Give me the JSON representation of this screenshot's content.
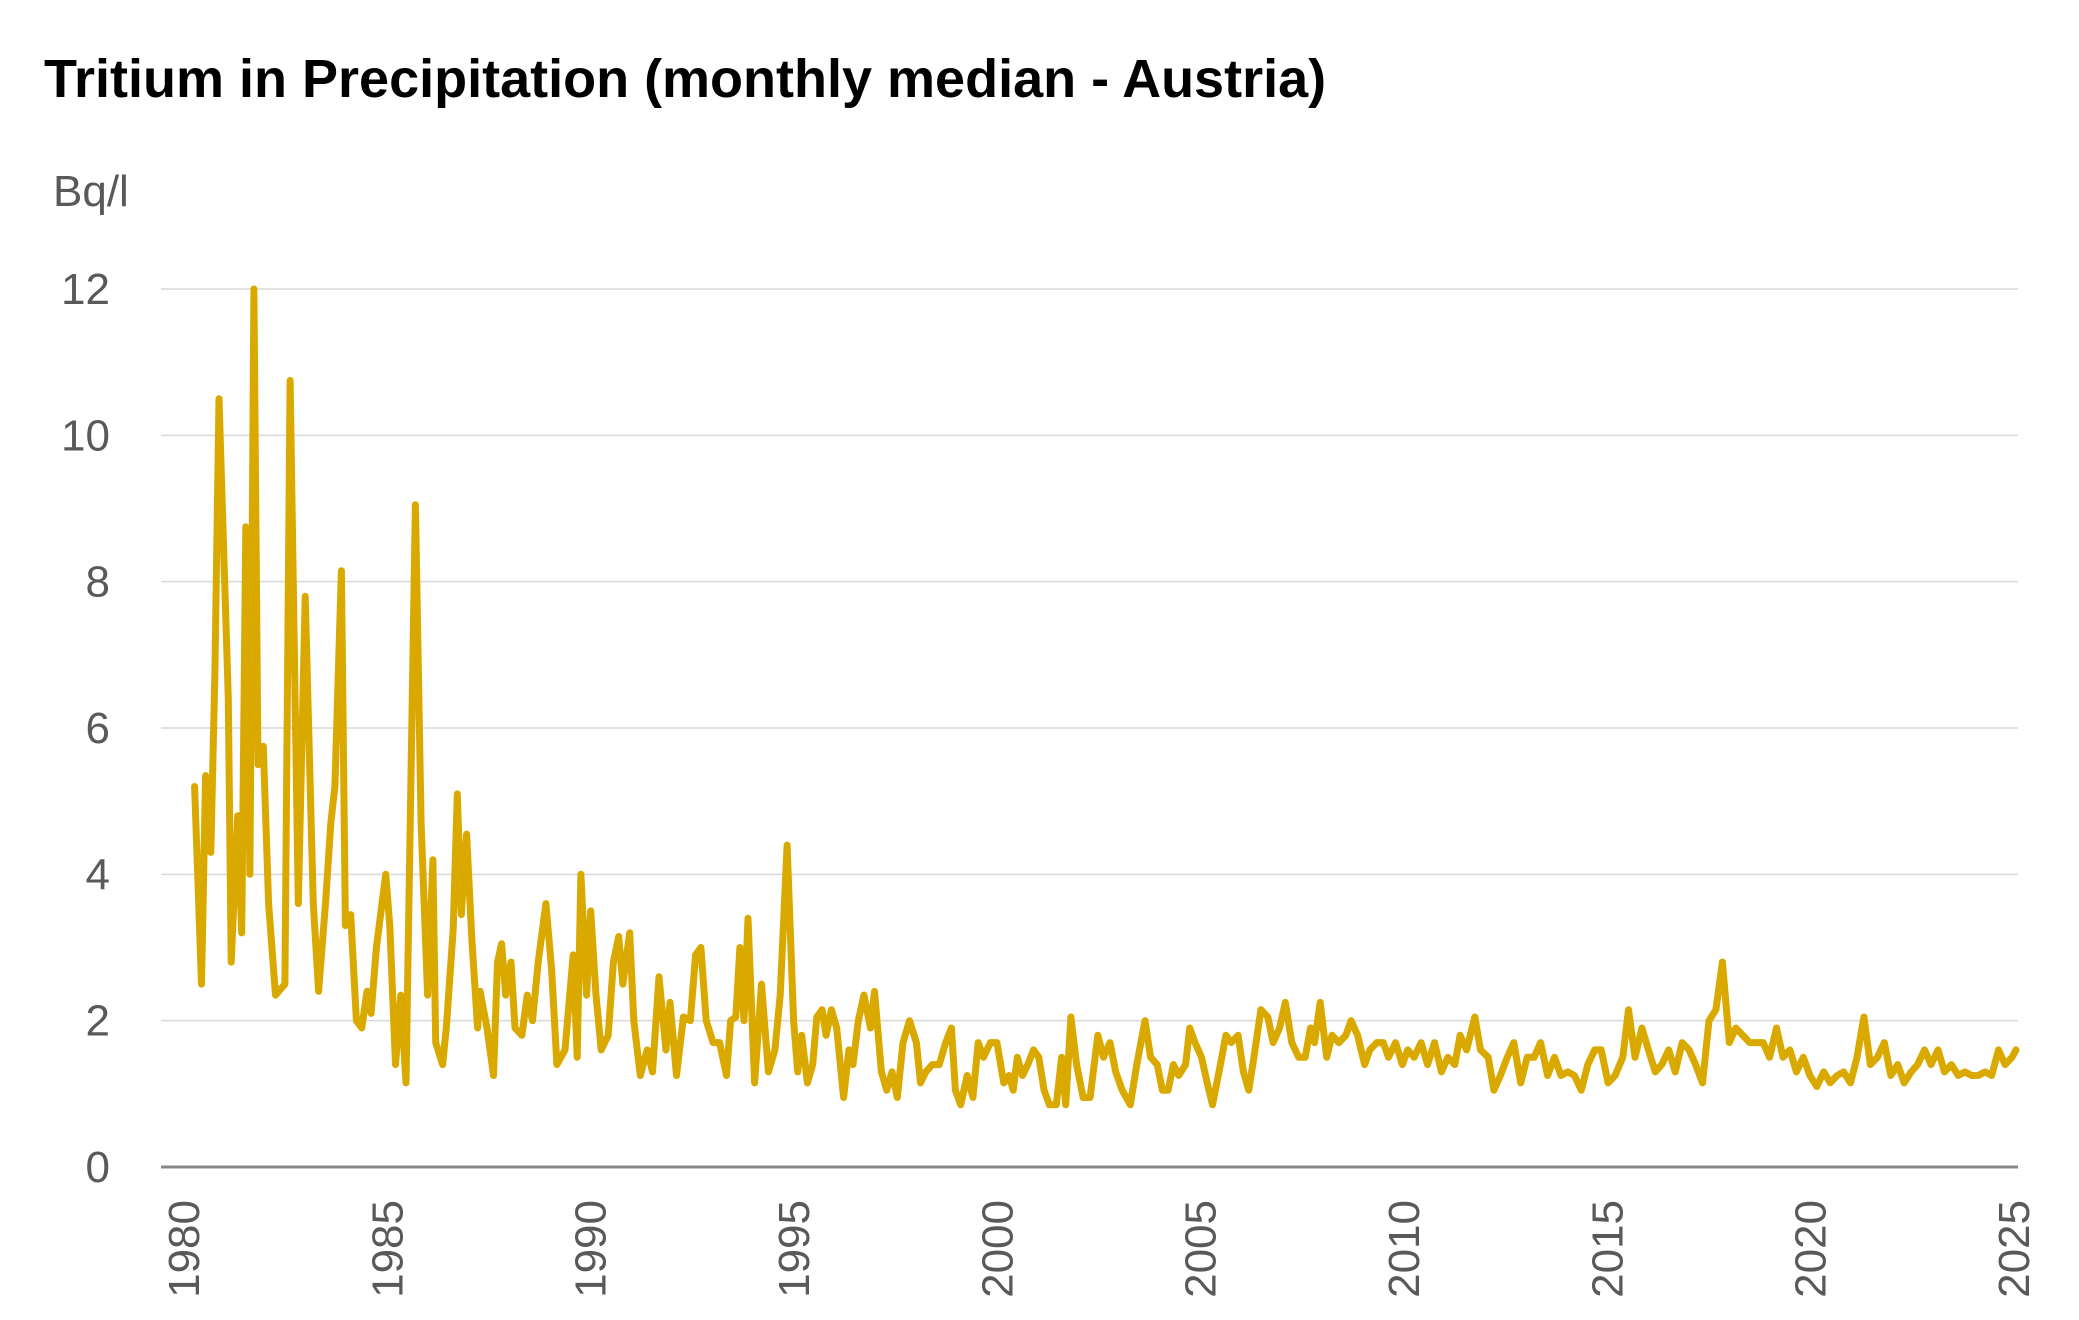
{
  "chart_data": {
    "type": "line",
    "title": "Tritium in Precipitation (monthly median - Austria)",
    "ylabel": "Bq/l",
    "xlabel": "",
    "ylim": [
      0,
      12
    ],
    "yticks": [
      "0",
      "2",
      "4",
      "6",
      "8",
      "10",
      "12"
    ],
    "xlim": [
      1980,
      2025
    ],
    "xticks": [
      "1980",
      "1985",
      "1990",
      "1995",
      "2000",
      "2005",
      "2010",
      "2015",
      "2020",
      "2025"
    ],
    "grid": "horizontal",
    "legend": "none",
    "color": "#DAA900",
    "series": [
      {
        "x": [
          1980.26,
          1980.43,
          1980.53,
          1980.66,
          1980.76,
          1980.86,
          1981.09,
          1981.16,
          1981.32,
          1981.42,
          1981.52,
          1981.62,
          1981.72,
          1981.82,
          1981.95,
          1982.08,
          1982.25,
          1982.48,
          1982.61,
          1982.81,
          1982.98,
          1983.18,
          1983.31,
          1983.48,
          1983.61,
          1983.71,
          1983.87,
          1983.97,
          1984.1,
          1984.24,
          1984.37,
          1984.5,
          1984.6,
          1984.73,
          1984.96,
          1985.06,
          1985.2,
          1985.33,
          1985.46,
          1985.69,
          1985.83,
          1985.99,
          1986.12,
          1986.19,
          1986.36,
          1986.45,
          1986.62,
          1986.72,
          1986.82,
          1986.95,
          1987.08,
          1987.22,
          1987.28,
          1987.45,
          1987.61,
          1987.71,
          1987.81,
          1987.91,
          1988.04,
          1988.14,
          1988.31,
          1988.44,
          1988.57,
          1988.71,
          1988.9,
          1989.04,
          1989.17,
          1989.37,
          1989.57,
          1989.67,
          1989.76,
          1989.9,
          1990.0,
          1990.13,
          1990.26,
          1990.43,
          1990.56,
          1990.69,
          1990.79,
          1990.96,
          1991.06,
          1991.22,
          1991.39,
          1991.52,
          1991.68,
          1991.85,
          1991.95,
          1992.11,
          1992.28,
          1992.45,
          1992.58,
          1992.71,
          1992.84,
          1993.01,
          1993.17,
          1993.34,
          1993.44,
          1993.57,
          1993.67,
          1993.77,
          1993.87,
          1994.03,
          1994.2,
          1994.37,
          1994.53,
          1994.66,
          1994.83,
          1994.99,
          1995.09,
          1995.19,
          1995.33,
          1995.46,
          1995.56,
          1995.69,
          1995.79,
          1995.92,
          1996.05,
          1996.22,
          1996.35,
          1996.45,
          1996.58,
          1996.72,
          1996.88,
          1996.98,
          1997.15,
          1997.28,
          1997.41,
          1997.54,
          1997.68,
          1997.84,
          1998.01,
          1998.11,
          1998.24,
          1998.4,
          1998.57,
          1998.73,
          1998.87,
          1998.97,
          1999.1,
          1999.26,
          1999.4,
          1999.53,
          1999.66,
          1999.83,
          1999.99,
          2000.16,
          2000.29,
          2000.39,
          2000.49,
          2000.62,
          2000.75,
          2000.89,
          2001.02,
          2001.15,
          2001.28,
          2001.45,
          2001.58,
          2001.68,
          2001.81,
          2001.95,
          2002.11,
          2002.28,
          2002.47,
          2002.61,
          2002.77,
          2002.91,
          2003.07,
          2003.27,
          2003.43,
          2003.63,
          2003.77,
          2003.93,
          2004.06,
          2004.2,
          2004.33,
          2004.46,
          2004.63,
          2004.73,
          2004.86,
          2005.02,
          2005.16,
          2005.29,
          2005.45,
          2005.62,
          2005.75,
          2005.92,
          2006.05,
          2006.18,
          2006.31,
          2006.48,
          2006.65,
          2006.78,
          2006.94,
          2007.08,
          2007.24,
          2007.41,
          2007.57,
          2007.7,
          2007.8,
          2007.94,
          2008.1,
          2008.23,
          2008.4,
          2008.57,
          2008.7,
          2008.86,
          2009.03,
          2009.16,
          2009.33,
          2009.49,
          2009.62,
          2009.79,
          2009.96,
          2010.09,
          2010.25,
          2010.42,
          2010.58,
          2010.75,
          2010.92,
          2011.08,
          2011.25,
          2011.38,
          2011.54,
          2011.74,
          2011.88,
          2012.07,
          2012.21,
          2012.37,
          2012.54,
          2012.7,
          2012.87,
          2013.03,
          2013.2,
          2013.36,
          2013.53,
          2013.7,
          2013.86,
          2014.03,
          2014.19,
          2014.36,
          2014.52,
          2014.69,
          2014.85,
          2015.02,
          2015.19,
          2015.38,
          2015.52,
          2015.68,
          2015.85,
          2016.01,
          2016.18,
          2016.34,
          2016.51,
          2016.67,
          2016.84,
          2017.01,
          2017.17,
          2017.34,
          2017.5,
          2017.67,
          2017.83,
          2018.0,
          2018.16,
          2018.33,
          2018.5,
          2018.66,
          2018.83,
          2018.99,
          2019.16,
          2019.32,
          2019.49,
          2019.65,
          2019.82,
          2019.98,
          2020.15,
          2020.32,
          2020.48,
          2020.65,
          2020.81,
          2020.98,
          2021.14,
          2021.31,
          2021.47,
          2021.64,
          2021.81,
          2021.97,
          2022.14,
          2022.3,
          2022.47,
          2022.63,
          2022.8,
          2022.96,
          2023.13,
          2023.29,
          2023.46,
          2023.63,
          2023.79,
          2023.96,
          2024.12,
          2024.29,
          2024.45,
          2024.62,
          2024.78,
          2024.95,
          2025.05
        ],
        "values": [
          5.2,
          2.5,
          5.35,
          4.3,
          6.75,
          10.5,
          6.4,
          2.8,
          4.8,
          3.2,
          8.75,
          4.0,
          12.0,
          5.5,
          5.75,
          3.6,
          2.35,
          2.5,
          10.75,
          3.6,
          7.8,
          3.6,
          2.4,
          3.6,
          4.7,
          5.2,
          8.15,
          3.3,
          3.45,
          2.0,
          1.9,
          2.4,
          2.1,
          3.0,
          4.0,
          3.3,
          1.4,
          2.35,
          1.15,
          9.05,
          4.7,
          2.35,
          4.2,
          1.7,
          1.4,
          1.9,
          3.25,
          5.1,
          3.45,
          4.55,
          3.1,
          1.9,
          2.4,
          1.9,
          1.25,
          2.8,
          3.05,
          2.35,
          2.8,
          1.9,
          1.8,
          2.35,
          2.0,
          2.8,
          3.6,
          2.7,
          1.4,
          1.6,
          2.9,
          1.5,
          4.0,
          2.35,
          3.5,
          2.35,
          1.6,
          1.8,
          2.8,
          3.15,
          2.5,
          3.2,
          2.0,
          1.25,
          1.6,
          1.3,
          2.6,
          1.6,
          2.25,
          1.25,
          2.05,
          2.0,
          2.9,
          3.0,
          2.0,
          1.7,
          1.7,
          1.25,
          2.0,
          2.05,
          3.0,
          2.0,
          3.4,
          1.15,
          2.5,
          1.3,
          1.6,
          2.35,
          4.4,
          2.0,
          1.3,
          1.8,
          1.15,
          1.4,
          2.05,
          2.15,
          1.8,
          2.15,
          1.9,
          0.95,
          1.6,
          1.4,
          2.0,
          2.35,
          1.9,
          2.4,
          1.3,
          1.05,
          1.3,
          0.95,
          1.7,
          2.0,
          1.7,
          1.15,
          1.3,
          1.4,
          1.4,
          1.7,
          1.9,
          1.05,
          0.85,
          1.25,
          0.95,
          1.7,
          1.5,
          1.7,
          1.7,
          1.15,
          1.25,
          1.05,
          1.5,
          1.25,
          1.4,
          1.6,
          1.5,
          1.05,
          0.85,
          0.85,
          1.5,
          0.85,
          2.05,
          1.4,
          0.95,
          0.95,
          1.8,
          1.5,
          1.7,
          1.3,
          1.05,
          0.85,
          1.4,
          2.0,
          1.5,
          1.4,
          1.05,
          1.05,
          1.4,
          1.25,
          1.4,
          1.9,
          1.7,
          1.5,
          1.15,
          0.85,
          1.3,
          1.8,
          1.7,
          1.8,
          1.3,
          1.05,
          1.5,
          2.15,
          2.05,
          1.7,
          1.9,
          2.25,
          1.7,
          1.5,
          1.5,
          1.9,
          1.7,
          2.25,
          1.5,
          1.8,
          1.7,
          1.8,
          2.0,
          1.8,
          1.4,
          1.6,
          1.7,
          1.7,
          1.5,
          1.7,
          1.4,
          1.6,
          1.5,
          1.7,
          1.4,
          1.7,
          1.3,
          1.5,
          1.4,
          1.8,
          1.6,
          2.05,
          1.6,
          1.5,
          1.05,
          1.25,
          1.5,
          1.7,
          1.15,
          1.5,
          1.5,
          1.7,
          1.25,
          1.5,
          1.25,
          1.3,
          1.25,
          1.05,
          1.4,
          1.6,
          1.6,
          1.15,
          1.25,
          1.5,
          2.15,
          1.5,
          1.9,
          1.6,
          1.3,
          1.4,
          1.6,
          1.3,
          1.7,
          1.6,
          1.4,
          1.15,
          2.0,
          2.15,
          2.8,
          1.7,
          1.9,
          1.8,
          1.7,
          1.7,
          1.7,
          1.5,
          1.9,
          1.5,
          1.6,
          1.3,
          1.5,
          1.25,
          1.1,
          1.3,
          1.15,
          1.25,
          1.3,
          1.15,
          1.5,
          2.05,
          1.4,
          1.5,
          1.7,
          1.25,
          1.4,
          1.15,
          1.3,
          1.4,
          1.6,
          1.4,
          1.6,
          1.3,
          1.4,
          1.25,
          1.3,
          1.25,
          1.25,
          1.3,
          1.25,
          1.6,
          1.4,
          1.5,
          1.6
        ]
      }
    ]
  }
}
